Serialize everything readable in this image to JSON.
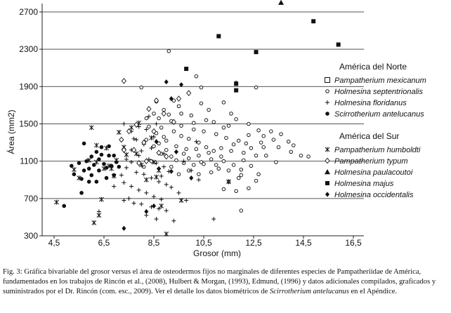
{
  "chart_data": {
    "type": "scatter",
    "xlabel": "Grosor (mm)",
    "ylabel": "Área (mm2)",
    "xlim": [
      4.5,
      16.5
    ],
    "ylim": [
      300,
      2800
    ],
    "x_ticks": [
      "4,5",
      "6,5",
      "8,5",
      "10,5",
      "12,5",
      "14,5",
      "16,5"
    ],
    "x_tick_values": [
      4.5,
      6.5,
      8.5,
      10.5,
      12.5,
      14.5,
      16.5
    ],
    "y_ticks": [
      "300",
      "700",
      "1100",
      "1500",
      "1900",
      "2300",
      "2700"
    ],
    "y_tick_values": [
      300,
      700,
      1100,
      1500,
      1900,
      2300,
      2700
    ],
    "grid": "horizontal",
    "legend_groups": [
      {
        "heading": "América del Norte",
        "entries": [
          {
            "name": "Pampatherium mexicanum",
            "marker": "square-open"
          },
          {
            "name": "Holmesina septentrionalis",
            "marker": "circle-open"
          },
          {
            "name": "Holmesina floridanus",
            "marker": "plus"
          },
          {
            "name": "Scirrotherium antelucanus",
            "marker": "dot-filled"
          }
        ]
      },
      {
        "heading": "América del Sur",
        "entries": [
          {
            "name": "Pampatherium humboldti",
            "marker": "asterisk"
          },
          {
            "name": "Pampatherium typum",
            "marker": "diamond-open"
          },
          {
            "name": "Holmesina paulacoutoi",
            "marker": "triangle-filled"
          },
          {
            "name": "Holmesina majus",
            "marker": "square-filled"
          },
          {
            "name": "Holmesina occidentalis",
            "marker": "diamond-filled"
          }
        ]
      }
    ],
    "series": [
      {
        "name": "Pampatherium mexicanum",
        "marker": "square-open",
        "points": []
      },
      {
        "name": "Holmesina septentrionalis",
        "marker": "circle-open",
        "points": [
          [
            9.1,
            2280
          ],
          [
            10.2,
            2010
          ],
          [
            10.4,
            1890
          ],
          [
            11.8,
            1940
          ],
          [
            12.6,
            1890
          ],
          [
            9.6,
            1610
          ],
          [
            10.1,
            1510
          ],
          [
            10.7,
            1650
          ],
          [
            11.3,
            1730
          ],
          [
            11.8,
            1550
          ],
          [
            11.5,
            1480
          ],
          [
            12.3,
            1500
          ],
          [
            12.7,
            1430
          ],
          [
            13.2,
            1420
          ],
          [
            13.6,
            1390
          ],
          [
            13.3,
            1330
          ],
          [
            13.9,
            1310
          ],
          [
            14.1,
            1270
          ],
          [
            14.4,
            1160
          ],
          [
            14.7,
            1150
          ],
          [
            12.9,
            1250
          ],
          [
            12.4,
            1240
          ],
          [
            12.1,
            1190
          ],
          [
            11.6,
            1210
          ],
          [
            11.2,
            1150
          ],
          [
            10.8,
            1120
          ],
          [
            10.4,
            1090
          ],
          [
            10.1,
            1060
          ],
          [
            9.9,
            1000
          ],
          [
            9.5,
            960
          ],
          [
            9.2,
            1150
          ],
          [
            9.0,
            1220
          ],
          [
            8.7,
            1290
          ],
          [
            8.9,
            1360
          ],
          [
            9.3,
            1420
          ],
          [
            9.6,
            1370
          ],
          [
            9.9,
            1340
          ],
          [
            10.3,
            1300
          ],
          [
            10.6,
            1250
          ],
          [
            10.9,
            1210
          ],
          [
            11.3,
            1100
          ],
          [
            11.7,
            1060
          ],
          [
            12.0,
            1010
          ],
          [
            12.4,
            1050
          ],
          [
            12.7,
            960
          ],
          [
            12.3,
            810
          ],
          [
            12.0,
            570
          ],
          [
            12.6,
            890
          ],
          [
            11.9,
            920
          ],
          [
            11.5,
            880
          ],
          [
            11.1,
            1020
          ],
          [
            10.8,
            980
          ],
          [
            10.3,
            960
          ],
          [
            9.7,
            1080
          ],
          [
            9.2,
            1040
          ],
          [
            8.8,
            1180
          ],
          [
            8.4,
            1100
          ],
          [
            8.1,
            1040
          ],
          [
            8.5,
            1260
          ],
          [
            8.2,
            1330
          ],
          [
            8.8,
            1460
          ],
          [
            9.2,
            1530
          ],
          [
            9.6,
            1480
          ],
          [
            10.1,
            1440
          ],
          [
            10.5,
            1420
          ],
          [
            11.0,
            1390
          ],
          [
            11.4,
            1350
          ],
          [
            11.9,
            1320
          ],
          [
            12.2,
            1290
          ],
          [
            12.9,
            1370
          ],
          [
            13.5,
            1250
          ],
          [
            12.6,
            1160
          ],
          [
            12.1,
            1110
          ],
          [
            11.7,
            1280
          ],
          [
            11.2,
            1240
          ],
          [
            10.7,
            1190
          ],
          [
            10.3,
            1160
          ],
          [
            9.8,
            1230
          ],
          [
            9.4,
            1260
          ],
          [
            9.0,
            1320
          ],
          [
            8.6,
            1400
          ],
          [
            8.3,
            1470
          ],
          [
            8.7,
            1560
          ],
          [
            9.1,
            1600
          ],
          [
            9.5,
            1690
          ],
          [
            10.0,
            1590
          ],
          [
            10.4,
            1720
          ],
          [
            10.9,
            1520
          ],
          [
            11.6,
            1610
          ],
          [
            12.3,
            1380
          ],
          [
            13.0,
            1160
          ],
          [
            13.4,
            1090
          ],
          [
            14.0,
            1200
          ],
          [
            12.8,
            1300
          ],
          [
            11.3,
            1460
          ],
          [
            10.6,
            1540
          ],
          [
            10.2,
            1230
          ],
          [
            9.7,
            1180
          ],
          [
            9.4,
            1110
          ],
          [
            9.9,
            1130
          ],
          [
            10.5,
            1070
          ],
          [
            11.0,
            1060
          ],
          [
            11.5,
            1000
          ],
          [
            12.0,
            950
          ],
          [
            11.3,
            800
          ],
          [
            11.8,
            780
          ],
          [
            8.2,
            1560
          ],
          [
            8.5,
            1610
          ],
          [
            8.9,
            1650
          ],
          [
            9.3,
            1750
          ],
          [
            8.6,
            1740
          ],
          [
            8.0,
            1890
          ]
        ]
      },
      {
        "name": "Holmesina floridanus",
        "marker": "plus",
        "points": [
          [
            7.3,
            1500
          ],
          [
            7.6,
            1420
          ],
          [
            7.9,
            1470
          ],
          [
            8.2,
            1440
          ],
          [
            8.5,
            1360
          ],
          [
            7.8,
            1330
          ],
          [
            8.1,
            1280
          ],
          [
            8.4,
            1240
          ],
          [
            7.6,
            1220
          ],
          [
            7.9,
            1160
          ],
          [
            8.3,
            1120
          ],
          [
            8.6,
            1080
          ],
          [
            8.9,
            1040
          ],
          [
            7.4,
            1030
          ],
          [
            7.8,
            980
          ],
          [
            8.1,
            960
          ],
          [
            8.4,
            920
          ],
          [
            8.7,
            880
          ],
          [
            9.0,
            850
          ],
          [
            7.3,
            870
          ],
          [
            7.6,
            830
          ],
          [
            7.9,
            790
          ],
          [
            8.2,
            760
          ],
          [
            8.5,
            720
          ],
          [
            8.8,
            690
          ],
          [
            7.3,
            680
          ],
          [
            7.7,
            650
          ],
          [
            8.0,
            640
          ],
          [
            8.4,
            610
          ],
          [
            8.7,
            590
          ],
          [
            9.0,
            570
          ],
          [
            8.2,
            520
          ],
          [
            8.6,
            480
          ],
          [
            9.3,
            460
          ],
          [
            7.5,
            700
          ],
          [
            6.3,
            560
          ],
          [
            6.9,
            830
          ],
          [
            7.2,
            950
          ],
          [
            7.6,
            1090
          ],
          [
            9.4,
            1200
          ],
          [
            9.7,
            1100
          ],
          [
            10.0,
            1000
          ],
          [
            10.3,
            900
          ],
          [
            9.5,
            760
          ],
          [
            10.9,
            480
          ],
          [
            9.8,
            680
          ],
          [
            10.2,
            1310
          ],
          [
            9.1,
            990
          ],
          [
            8.9,
            1180
          ],
          [
            8.0,
            1210
          ],
          [
            7.7,
            1340
          ],
          [
            8.6,
            1500
          ],
          [
            8.3,
            1580
          ],
          [
            7.4,
            1120
          ],
          [
            8.8,
            940
          ],
          [
            9.2,
            820
          ]
        ]
      },
      {
        "name": "Scirrotherium antelucanus",
        "marker": "dot-filled",
        "points": [
          [
            4.9,
            620
          ],
          [
            5.3,
            960
          ],
          [
            5.6,
            760
          ],
          [
            5.6,
            910
          ],
          [
            5.7,
            1000
          ],
          [
            5.9,
            880
          ],
          [
            5.8,
            1100
          ],
          [
            6.0,
            950
          ],
          [
            6.1,
            1060
          ],
          [
            6.2,
            880
          ],
          [
            6.3,
            1000
          ],
          [
            6.2,
            1200
          ],
          [
            6.4,
            1170
          ],
          [
            6.5,
            1070
          ],
          [
            6.6,
            1030
          ],
          [
            6.7,
            1160
          ],
          [
            6.8,
            1050
          ],
          [
            6.9,
            950
          ],
          [
            5.5,
            1080
          ],
          [
            5.2,
            1050
          ],
          [
            6.0,
            1150
          ],
          [
            5.7,
            1290
          ],
          [
            6.7,
            1260
          ],
          [
            6.4,
            1250
          ],
          [
            6.9,
            1160
          ],
          [
            7.1,
            1040
          ],
          [
            6.3,
            1120
          ],
          [
            5.9,
            1020
          ],
          [
            6.6,
            920
          ],
          [
            7.0,
            1090
          ]
        ]
      },
      {
        "name": "Pampatherium humboldti",
        "marker": "asterisk",
        "points": [
          [
            4.6,
            660
          ],
          [
            5.3,
            1010
          ],
          [
            6.0,
            1460
          ],
          [
            5.5,
            920
          ],
          [
            6.4,
            690
          ],
          [
            6.7,
            1050
          ],
          [
            6.6,
            1240
          ],
          [
            6.3,
            520
          ],
          [
            6.1,
            440
          ],
          [
            5.9,
            1110
          ],
          [
            6.2,
            1090
          ],
          [
            6.8,
            1020
          ],
          [
            7.1,
            1410
          ],
          [
            7.6,
            1460
          ],
          [
            8.0,
            1060
          ],
          [
            8.2,
            900
          ],
          [
            9.0,
            320
          ],
          [
            9.6,
            680
          ],
          [
            11.5,
            880
          ],
          [
            6.9,
            940
          ],
          [
            7.4,
            1170
          ],
          [
            7.8,
            1180
          ],
          [
            8.5,
            1090
          ],
          [
            8.7,
            1000
          ],
          [
            8.8,
            620
          ],
          [
            6.5,
            1020
          ],
          [
            7.0,
            1110
          ],
          [
            7.3,
            1250
          ],
          [
            6.2,
            1270
          ],
          [
            7.9,
            1510
          ],
          [
            8.4,
            1350
          ],
          [
            8.6,
            930
          ]
        ]
      },
      {
        "name": "Pampatherium typum",
        "marker": "diamond-open",
        "points": [
          [
            7.3,
            1960
          ],
          [
            8.6,
            1750
          ],
          [
            9.5,
            1770
          ],
          [
            9.9,
            1830
          ],
          [
            8.9,
            1610
          ],
          [
            8.3,
            1660
          ],
          [
            7.8,
            1490
          ],
          [
            7.5,
            1420
          ],
          [
            7.7,
            1220
          ],
          [
            7.3,
            1220
          ],
          [
            8.7,
            1190
          ],
          [
            9.0,
            1150
          ],
          [
            8.2,
            1100
          ],
          [
            7.9,
            1080
          ],
          [
            9.3,
            1520
          ],
          [
            7.2,
            1330
          ],
          [
            8.5,
            1420
          ],
          [
            8.1,
            1300
          ]
        ]
      },
      {
        "name": "Holmesina paulacoutoi",
        "marker": "triangle-filled",
        "points": [
          [
            13.6,
            2800
          ]
        ]
      },
      {
        "name": "Holmesina majus",
        "marker": "square-filled",
        "points": [
          [
            11.1,
            2440
          ],
          [
            12.6,
            2270
          ],
          [
            14.9,
            2600
          ],
          [
            15.9,
            2350
          ],
          [
            9.8,
            2090
          ],
          [
            11.8,
            1930
          ],
          [
            11.8,
            1860
          ]
        ]
      },
      {
        "name": "Holmesina occidentalis",
        "marker": "diamond-filled",
        "points": [
          [
            9.0,
            1950
          ],
          [
            9.2,
            1770
          ],
          [
            9.6,
            1920
          ],
          [
            8.7,
            1020
          ],
          [
            9.2,
            990
          ],
          [
            10.0,
            920
          ],
          [
            8.5,
            620
          ],
          [
            8.2,
            560
          ],
          [
            7.3,
            380
          ],
          [
            8.6,
            1310
          ],
          [
            9.4,
            1200
          ]
        ]
      }
    ]
  },
  "caption": {
    "part1": "Fig. 3: Gráfica bivariable del grosor versus el área de osteodermos fijos no marginales de diferentes especies de Pampatheriidae de América, fundamentados en los trabajos de Rincón et al., (2008), Hulbert & Morgan, (1993), Edmund, (1996) y datos adicionales compilados, graficados y suministrados por el Dr. Rincón (com. esc., 2009). Ver el detalle los datos biométricos de ",
    "italic": "Scirrotherium antelucanus",
    "part2": " en el Apéndice."
  }
}
